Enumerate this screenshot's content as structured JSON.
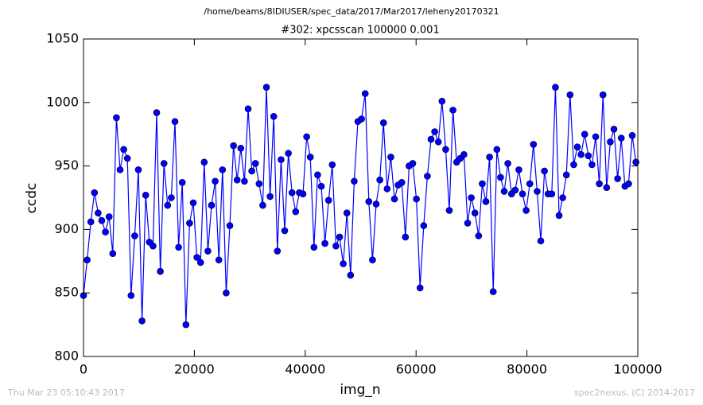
{
  "chart_data": {
    "type": "line",
    "suptitle": "/home/beams/8IDIUSER/spec_data/2017/Mar2017/leheny20170321",
    "title": "#302: xpcsscan 100000 0.001",
    "xlabel": "img_n",
    "ylabel": "ccdc",
    "footer_left": "Thu Mar 23 05:10:43 2017",
    "footer_right": "spec2nexus, (C) 2014-2017",
    "x": [
      0,
      660,
      1320,
      1980,
      2640,
      3300,
      3960,
      4620,
      5280,
      5940,
      6600,
      7260,
      7920,
      8580,
      9240,
      9900,
      10560,
      11220,
      11880,
      12540,
      13200,
      13860,
      14520,
      15180,
      15840,
      16500,
      17160,
      17820,
      18480,
      19140,
      19800,
      20460,
      21120,
      21780,
      22440,
      23100,
      23760,
      24420,
      25080,
      25740,
      26400,
      27060,
      27720,
      28380,
      29040,
      29700,
      30360,
      31020,
      31680,
      32340,
      33000,
      33660,
      34320,
      34980,
      35640,
      36300,
      36960,
      37620,
      38280,
      38940,
      39600,
      40260,
      40920,
      41580,
      42240,
      42900,
      43560,
      44220,
      44880,
      45540,
      46200,
      46860,
      47520,
      48180,
      48840,
      49500,
      50160,
      50820,
      51480,
      52140,
      52800,
      53460,
      54120,
      54780,
      55440,
      56100,
      56760,
      57420,
      58080,
      58740,
      59400,
      60060,
      60720,
      61380,
      62040,
      62700,
      63360,
      64020,
      64680,
      65340,
      66000,
      66660,
      67320,
      67980,
      68640,
      69300,
      69960,
      70620,
      71280,
      71940,
      72600,
      73260,
      73920,
      74580,
      75240,
      75900,
      76560,
      77220,
      77880,
      78540,
      79200,
      79860,
      80520,
      81180,
      81840,
      82500,
      83160,
      83820,
      84480,
      85140,
      85800,
      86460,
      87120,
      87780,
      88440,
      89100,
      89760,
      90420,
      91080,
      91740,
      92400,
      93060,
      93720,
      94380,
      95040,
      95700,
      96360,
      97020,
      97680,
      98340,
      99000,
      99660
    ],
    "series": [
      {
        "color": "#0000ff",
        "values": [
          848,
          876,
          906,
          929,
          913,
          907,
          898,
          910,
          881,
          988,
          947,
          963,
          956,
          848,
          895,
          947,
          828,
          927,
          890,
          887,
          992,
          867,
          952,
          919,
          925,
          985,
          886,
          937,
          825,
          905,
          921,
          878,
          874,
          953,
          883,
          919,
          938,
          876,
          947,
          850,
          903,
          966,
          939,
          964,
          938,
          995,
          946,
          952,
          936,
          919,
          1012,
          926,
          989,
          883,
          955,
          899,
          960,
          929,
          914,
          929,
          928,
          973,
          957,
          886,
          943,
          934,
          889,
          923,
          951,
          887,
          894,
          873,
          913,
          864,
          938,
          985,
          987,
          1007,
          922,
          876,
          920,
          939,
          984,
          932,
          957,
          924,
          935,
          937,
          894,
          950,
          952,
          924,
          854,
          903,
          942,
          971,
          977,
          969,
          1001,
          963,
          915,
          994,
          953,
          956,
          959,
          905,
          925,
          913,
          895,
          936,
          922,
          957,
          851,
          963,
          941,
          930,
          952,
          928,
          931,
          947,
          928,
          915,
          936,
          967,
          930,
          891,
          946,
          928,
          928,
          1012,
          911,
          925,
          943,
          1006,
          951,
          965,
          959,
          975,
          958,
          951,
          973,
          936,
          1006,
          933,
          969,
          979,
          940,
          972,
          934,
          936,
          974,
          953
        ]
      }
    ],
    "xlim": [
      0,
      100000
    ],
    "xticks": [
      0,
      20000,
      40000,
      60000,
      80000,
      100000
    ],
    "ylim": [
      800,
      1050
    ],
    "yticks": [
      800,
      850,
      900,
      950,
      1000,
      1050
    ],
    "grid": false
  }
}
